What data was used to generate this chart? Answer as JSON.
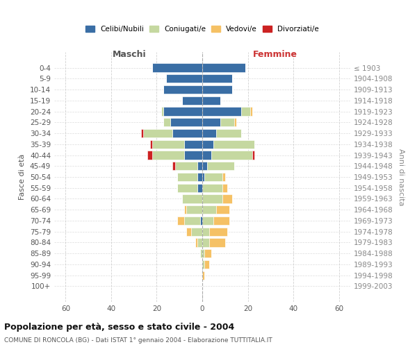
{
  "age_groups": [
    "0-4",
    "5-9",
    "10-14",
    "15-19",
    "20-24",
    "25-29",
    "30-34",
    "35-39",
    "40-44",
    "45-49",
    "50-54",
    "55-59",
    "60-64",
    "65-69",
    "70-74",
    "75-79",
    "80-84",
    "85-89",
    "90-94",
    "95-99",
    "100+"
  ],
  "birth_years": [
    "1999-2003",
    "1994-1998",
    "1989-1993",
    "1984-1988",
    "1979-1983",
    "1974-1978",
    "1969-1973",
    "1964-1968",
    "1959-1963",
    "1954-1958",
    "1949-1953",
    "1944-1948",
    "1939-1943",
    "1934-1938",
    "1929-1933",
    "1924-1928",
    "1919-1923",
    "1914-1918",
    "1909-1913",
    "1904-1908",
    "≤ 1903"
  ],
  "male": {
    "celibi": [
      22,
      16,
      17,
      9,
      17,
      14,
      13,
      8,
      8,
      2,
      2,
      2,
      0,
      0,
      1,
      0,
      0,
      0,
      0,
      0,
      0
    ],
    "coniugati": [
      0,
      0,
      0,
      0,
      1,
      3,
      13,
      14,
      14,
      10,
      9,
      9,
      9,
      7,
      7,
      5,
      2,
      1,
      0,
      0,
      0
    ],
    "vedovi": [
      0,
      0,
      0,
      0,
      0,
      0,
      0,
      0,
      0,
      0,
      0,
      0,
      0,
      1,
      3,
      2,
      1,
      0,
      0,
      0,
      0
    ],
    "divorziati": [
      0,
      0,
      0,
      0,
      0,
      0,
      1,
      1,
      2,
      1,
      0,
      0,
      0,
      0,
      0,
      0,
      0,
      0,
      0,
      0,
      0
    ]
  },
  "female": {
    "nubili": [
      19,
      13,
      13,
      8,
      17,
      8,
      6,
      5,
      4,
      2,
      1,
      0,
      0,
      0,
      0,
      0,
      0,
      0,
      0,
      0,
      0
    ],
    "coniugate": [
      0,
      0,
      0,
      0,
      4,
      6,
      11,
      18,
      18,
      12,
      8,
      9,
      9,
      6,
      5,
      3,
      3,
      1,
      1,
      0,
      0
    ],
    "vedove": [
      0,
      0,
      0,
      0,
      1,
      1,
      0,
      0,
      0,
      0,
      1,
      2,
      4,
      6,
      7,
      8,
      7,
      3,
      2,
      1,
      0
    ],
    "divorziate": [
      0,
      0,
      0,
      0,
      0,
      0,
      0,
      0,
      1,
      0,
      0,
      0,
      0,
      0,
      0,
      0,
      0,
      0,
      0,
      0,
      0
    ]
  },
  "colors": {
    "celibi": "#3a6ea5",
    "coniugati": "#c5d8a0",
    "vedovi": "#f5c165",
    "divorziati": "#cc2222"
  },
  "title": "Popolazione per età, sesso e stato civile - 2004",
  "subtitle": "COMUNE DI RONCOLA (BG) - Dati ISTAT 1° gennaio 2004 - Elaborazione TUTTITALIA.IT",
  "xlabel_left": "Maschi",
  "xlabel_right": "Femmine",
  "ylabel_left": "Fasce di età",
  "ylabel_right": "Anni di nascita",
  "xlim": 65,
  "background_color": "#ffffff",
  "grid_color": "#cccccc"
}
